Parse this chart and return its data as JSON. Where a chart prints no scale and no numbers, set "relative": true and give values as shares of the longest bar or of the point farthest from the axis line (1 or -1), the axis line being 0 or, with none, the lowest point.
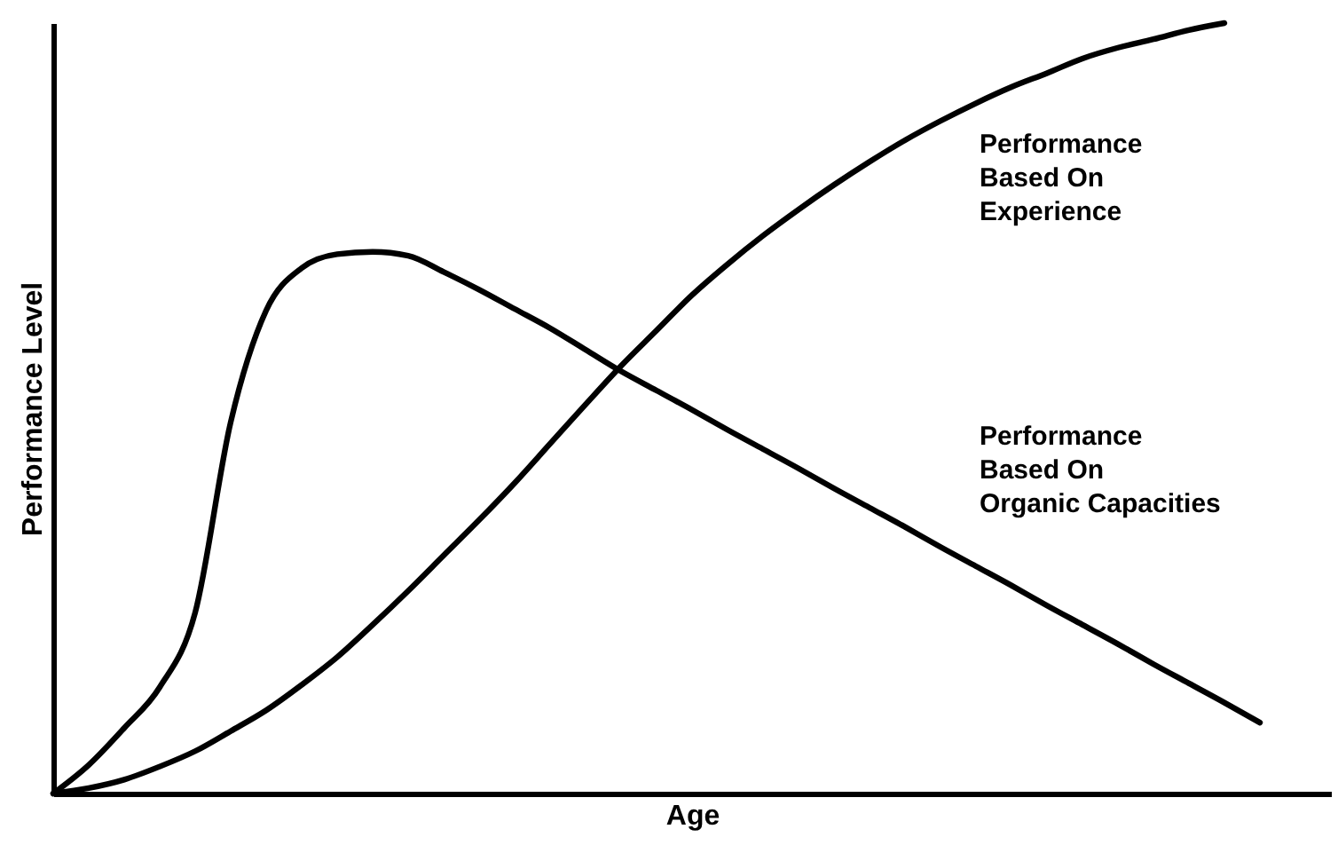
{
  "chart_data": {
    "type": "line",
    "relative": true,
    "xlabel": "Age",
    "ylabel": "Performance Level",
    "categories": [
      null,
      null,
      null,
      null,
      null,
      null,
      null,
      null,
      null,
      null,
      null,
      null,
      null,
      null,
      null,
      null,
      null,
      null,
      null,
      null,
      null,
      null,
      null,
      null,
      null,
      null,
      null,
      null,
      null,
      null,
      null,
      null,
      null,
      null,
      null,
      null,
      null
    ],
    "series": [
      {
        "name": "Performance Based On Experience",
        "color": "#000000",
        "values": [
          0,
          0.007,
          0.018,
          0.035,
          0.055,
          0.081,
          0.108,
          0.141,
          0.177,
          0.219,
          0.263,
          0.309,
          0.355,
          0.403,
          0.454,
          0.505,
          0.555,
          0.601,
          0.647,
          0.687,
          0.724,
          0.758,
          0.79,
          0.82,
          0.848,
          0.873,
          0.896,
          0.917,
          0.935,
          0.954,
          0.968,
          0.979,
          0.991,
          1,
          null,
          null,
          null
        ]
      },
      {
        "name": "Performance Based On Organic Capacities",
        "color": "#000000",
        "values": [
          0,
          0.037,
          0.085,
          0.138,
          0.235,
          0.482,
          0.627,
          0.682,
          0.7,
          0.703,
          0.698,
          0.677,
          0.654,
          0.629,
          0.604,
          0.576,
          0.548,
          0.523,
          0.498,
          0.472,
          0.447,
          0.422,
          0.396,
          0.371,
          0.346,
          0.32,
          0.295,
          0.27,
          0.244,
          0.219,
          0.194,
          0.168,
          0.143,
          0.118,
          0.092,
          null,
          null
        ]
      }
    ]
  }
}
